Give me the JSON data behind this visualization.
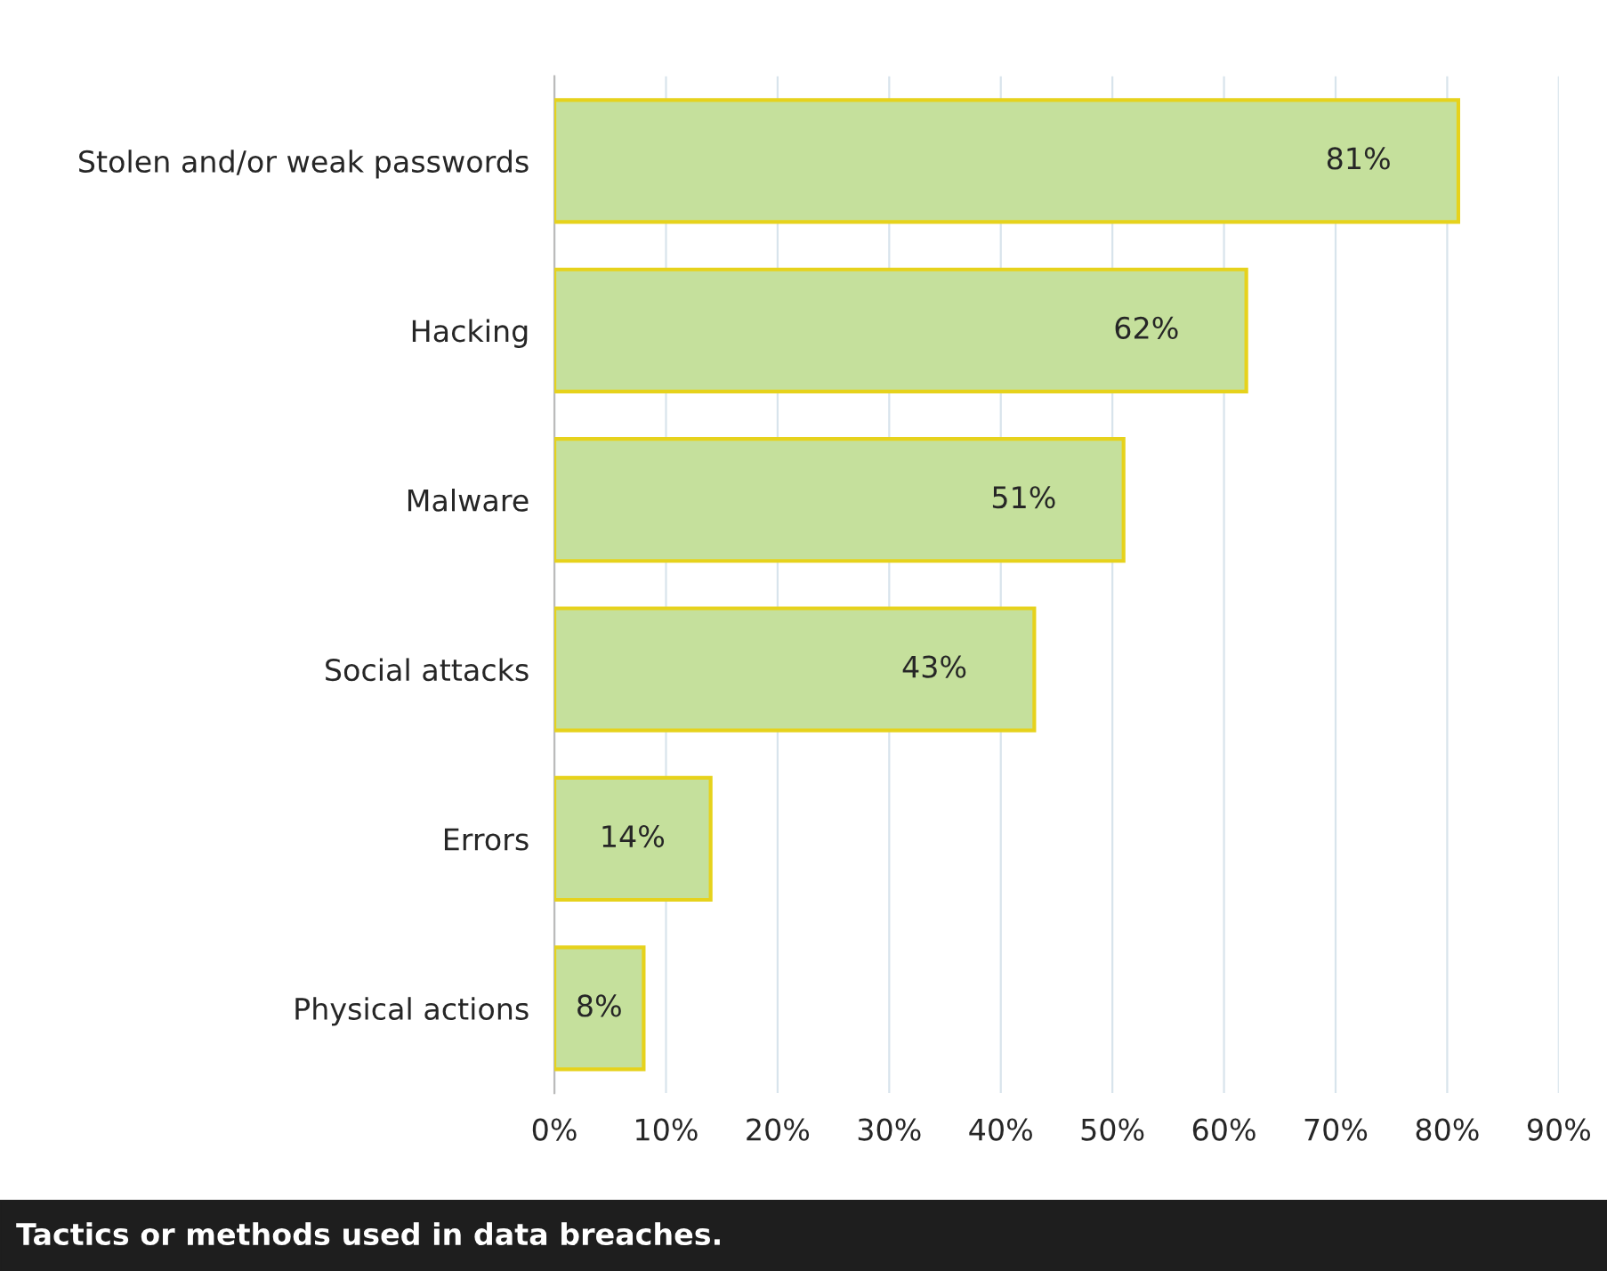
{
  "chart_data": {
    "type": "bar",
    "orientation": "horizontal",
    "categories": [
      "Stolen and/or weak passwords",
      "Hacking",
      "Malware",
      "Social attacks",
      "Errors",
      "Physical actions"
    ],
    "values": [
      81,
      62,
      51,
      43,
      14,
      8
    ],
    "value_labels": [
      "81%",
      "62%",
      "51%",
      "43%",
      "14%",
      "8%"
    ],
    "color": "#c5e09c",
    "xlim": [
      0,
      90
    ],
    "xticks": [
      {
        "value": 0,
        "label": "0%"
      },
      {
        "value": 10,
        "label": "10%"
      },
      {
        "value": 20,
        "label": "20%"
      },
      {
        "value": 30,
        "label": "30%"
      },
      {
        "value": 40,
        "label": "40%"
      },
      {
        "value": 50,
        "label": "50%"
      },
      {
        "value": 60,
        "label": "60%"
      },
      {
        "value": 70,
        "label": "70%"
      },
      {
        "value": 80,
        "label": "80%"
      },
      {
        "value": 90,
        "label": "90%"
      }
    ],
    "grid": "x",
    "annotations": [
      "Tactics or methods used in data breaches."
    ]
  }
}
